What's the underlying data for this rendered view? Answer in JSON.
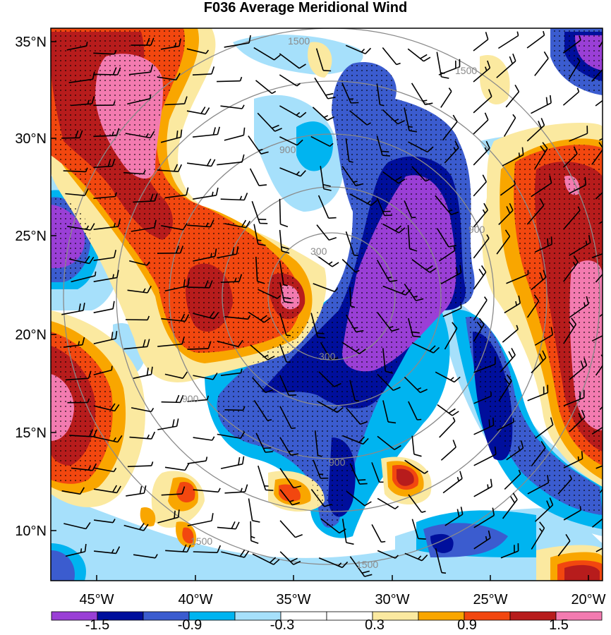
{
  "title": "F036 Average Meridional Wind",
  "map": {
    "lat_labels": [
      "35°N",
      "30°N",
      "25°N",
      "20°N",
      "15°N",
      "10°N"
    ],
    "lon_labels": [
      "45°W",
      "40°W",
      "35°W",
      "30°W",
      "25°W",
      "20°W"
    ],
    "range_ring_labels": [
      "300",
      "900",
      "1500"
    ],
    "stipple_note": "dotted shading over strongest anomalies"
  },
  "colorbar": {
    "labels": [
      "-1.5",
      "-0.9",
      "-0.3",
      "0.3",
      "0.9",
      "1.5"
    ],
    "colors": [
      "#9a3fd6",
      "#000f9c",
      "#3b5ccf",
      "#00b4f0",
      "#a6e0fb",
      "#ffffff",
      "#ffffff",
      "#fbe9a0",
      "#f9a600",
      "#f2470f",
      "#b71c1c",
      "#f37bb0"
    ]
  }
}
